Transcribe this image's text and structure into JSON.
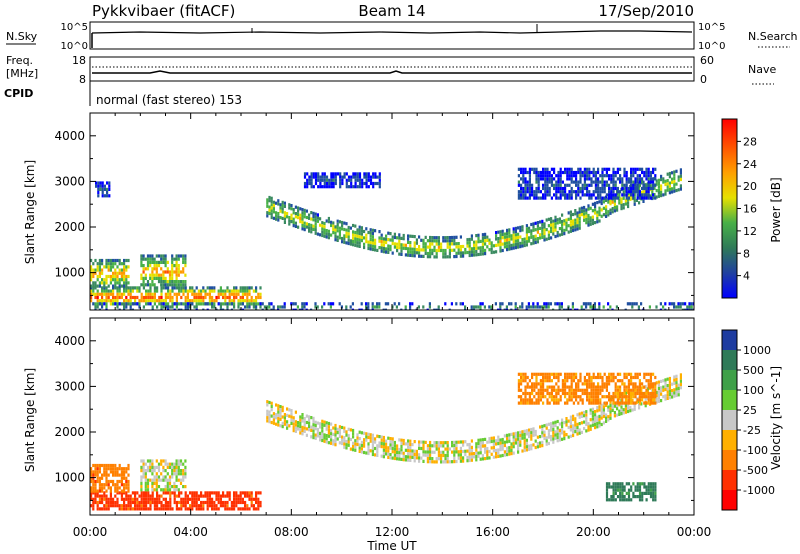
{
  "header": {
    "station": "Pykkvibaer (fitACF)",
    "beam": "Beam 14",
    "date": "17/Sep/2010"
  },
  "top_panels": {
    "nsky_label": "N.Sky",
    "nsearch_label": "N.Search",
    "freq_label_1": "Freq.",
    "freq_label_2": "[MHz]",
    "nave_label": "Nave",
    "cpid_label": "CPID",
    "cpid_text": "normal (fast stereo) 153",
    "noise_ticks_left": [
      "10^5",
      "10^0"
    ],
    "noise_ticks_right": [
      "10^5",
      "10^0"
    ],
    "freq_ticks_left": [
      "18",
      "8"
    ],
    "freq_ticks_right": [
      "60",
      "0"
    ]
  },
  "chart_data": [
    {
      "type": "heatmap",
      "quantity": "power",
      "ylabel": "Slant Range [km]",
      "xlabel": "Time UT",
      "ylim": [
        180,
        4500
      ],
      "yticks": [
        1000,
        2000,
        3000,
        4000
      ],
      "xlim_hours": [
        0,
        24
      ],
      "xticks": [
        "00:00",
        "04:00",
        "08:00",
        "12:00",
        "16:00",
        "20:00",
        "00:00"
      ],
      "colorbar": {
        "label": "Power [dB]",
        "ticks": [
          "4",
          "8",
          "12",
          "16",
          "20",
          "24",
          "28"
        ],
        "colors": [
          "#0000ff",
          "#2050a0",
          "#3a8a60",
          "#48b048",
          "#e6e000",
          "#ff9a00",
          "#ff5000",
          "#ff0000"
        ]
      },
      "bands": [
        {
          "hours": [
            0.0,
            6.8
          ],
          "range_km": [
            300,
            700
          ],
          "level": 6
        },
        {
          "hours": [
            0.0,
            1.5
          ],
          "range_km": [
            700,
            1300
          ],
          "level": 5
        },
        {
          "hours": [
            2.0,
            3.8
          ],
          "range_km": [
            700,
            1400
          ],
          "level": 5
        },
        {
          "hours": [
            0.2,
            0.8
          ],
          "range_km": [
            2700,
            3000
          ],
          "level": 1
        },
        {
          "hours": [
            7.0,
            23.5
          ],
          "range_km": [
            1500,
            2700
          ],
          "level": 4
        },
        {
          "hours": [
            8.5,
            11.5
          ],
          "range_km": [
            2900,
            3200
          ],
          "level": 1
        },
        {
          "hours": [
            17.0,
            22.5
          ],
          "range_km": [
            2600,
            3300
          ],
          "level": 1
        },
        {
          "hours": [
            0.0,
            24.0
          ],
          "range_km": [
            200,
            350
          ],
          "level": 2
        }
      ]
    },
    {
      "type": "heatmap",
      "quantity": "velocity",
      "ylabel": "Slant Range [km]",
      "xlabel": "Time UT",
      "ylim": [
        180,
        4500
      ],
      "yticks": [
        1000,
        2000,
        3000,
        4000
      ],
      "xlim_hours": [
        0,
        24
      ],
      "xticks": [
        "00:00",
        "04:00",
        "08:00",
        "12:00",
        "16:00",
        "20:00",
        "00:00"
      ],
      "colorbar": {
        "label": "Velocity [m s^-1]",
        "ticks": [
          "1000",
          "500",
          "100",
          "25",
          "-25",
          "-100",
          "-500",
          "-1000"
        ],
        "colors": [
          "#1e3ca0",
          "#2f7a58",
          "#3fa048",
          "#66cc33",
          "#c8c8c8",
          "#ffb000",
          "#ff8000",
          "#ff3000",
          "#ff0000"
        ]
      },
      "bands": [
        {
          "hours": [
            0.0,
            6.8
          ],
          "range_km": [
            300,
            700
          ],
          "value": -300
        },
        {
          "hours": [
            0.0,
            1.5
          ],
          "range_km": [
            700,
            1300
          ],
          "value": -200
        },
        {
          "hours": [
            2.0,
            3.8
          ],
          "range_km": [
            700,
            1400
          ],
          "value": 0
        },
        {
          "hours": [
            7.0,
            23.5
          ],
          "range_km": [
            1500,
            2700
          ],
          "value": 0
        },
        {
          "hours": [
            17.0,
            22.5
          ],
          "range_km": [
            2600,
            3300
          ],
          "value": -100
        },
        {
          "hours": [
            20.5,
            22.5
          ],
          "range_km": [
            500,
            900
          ],
          "value": 300
        }
      ]
    }
  ]
}
